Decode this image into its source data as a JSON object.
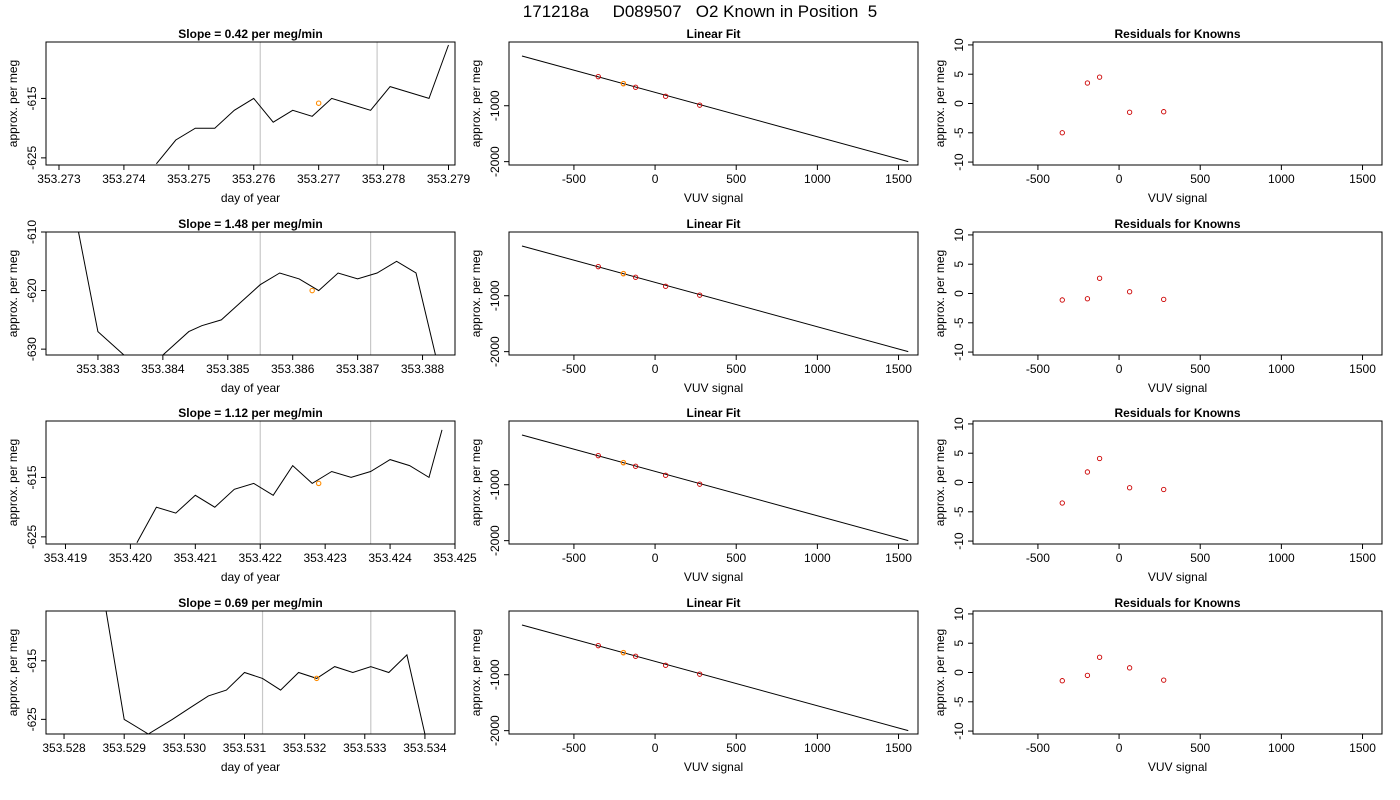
{
  "page_title": "171218a     D089507   O2 Known in Position  5",
  "colors": {
    "trace": "#000000",
    "residual_points": "#cc0000",
    "highlight_points": "#ff8c00",
    "vertical_lines": "#c8c8c8",
    "axes": "#000000"
  },
  "chart_data": [
    {
      "type": "line",
      "row": 1,
      "col": 1,
      "title": "Slope =  0.42  per meg/min",
      "xlabel": "day of year",
      "ylabel": "approx. per meg",
      "xticks": [
        "353.273",
        "353.274",
        "353.275",
        "353.276",
        "353.277",
        "353.278",
        "353.279"
      ],
      "yticks": [
        "-615",
        "-625"
      ],
      "xlim": [
        353.2728,
        353.2791
      ],
      "ylim": [
        -626.2,
        -605.5
      ],
      "vlines": [
        353.2761,
        353.2779
      ],
      "highlight": [
        [
          353.277,
          -615.8
        ]
      ],
      "series": [
        {
          "x": [
            353.2745,
            353.2748,
            353.2751,
            353.2754,
            353.2757,
            353.276,
            353.2763,
            353.2766,
            353.2769,
            353.2772,
            353.2775,
            353.2778,
            353.2781,
            353.2784,
            353.2787,
            353.279
          ],
          "y": [
            -626,
            -622,
            -620,
            -620,
            -617,
            -615,
            -619,
            -617,
            -618,
            -615,
            -616,
            -617,
            -613,
            -614,
            -615,
            -606
          ]
        }
      ]
    },
    {
      "type": "scatter",
      "row": 1,
      "col": 2,
      "title": "Linear Fit",
      "xlabel": "VUV signal",
      "ylabel": "approx. per meg",
      "xticks": [
        "-500",
        "0",
        "500",
        "1000",
        "1500"
      ],
      "yticks": [
        "-1000",
        "-2000"
      ],
      "xlim": [
        -900,
        1620
      ],
      "ylim": [
        -2060,
        140
      ],
      "fit_line": [
        [
          -820,
          -110
        ],
        [
          1560,
          -2000
        ]
      ],
      "points": [
        [
          -350,
          -480
        ],
        [
          -195,
          -605
        ],
        [
          -120,
          -670
        ],
        [
          65,
          -830
        ],
        [
          275,
          -990
        ]
      ],
      "highlight": [
        [
          -195,
          -605
        ]
      ]
    },
    {
      "type": "scatter",
      "row": 1,
      "col": 3,
      "title": "Residuals for Knowns",
      "xlabel": "VUV signal",
      "ylabel": "approx. per meg",
      "xticks": [
        "-500",
        "0",
        "500",
        "1000",
        "1500"
      ],
      "yticks": [
        "10",
        "5",
        "0",
        "-5",
        "-10"
      ],
      "xlim": [
        -900,
        1620
      ],
      "ylim": [
        -10.5,
        10.5
      ],
      "points": [
        [
          -350,
          -5.0
        ],
        [
          -195,
          3.5
        ],
        [
          -120,
          4.5
        ],
        [
          65,
          -1.5
        ],
        [
          275,
          -1.4
        ]
      ]
    },
    {
      "type": "line",
      "row": 2,
      "col": 1,
      "title": "Slope =  1.48  per meg/min",
      "xlabel": "day of year",
      "ylabel": "approx. per meg",
      "xticks": [
        "353.383",
        "353.384",
        "353.385",
        "353.386",
        "353.387",
        "353.388"
      ],
      "yticks": [
        "-610",
        "-620",
        "-630"
      ],
      "xlim": [
        353.3822,
        353.3885
      ],
      "ylim": [
        -631,
        -610
      ],
      "vlines": [
        353.3855,
        353.3872
      ],
      "highlight": [
        [
          353.3863,
          -620
        ]
      ],
      "series": [
        {
          "x": [
            353.3827,
            353.383,
            353.3834,
            353.384,
            353.3844,
            353.3846,
            353.3849,
            353.3852,
            353.3855,
            353.3858,
            353.3861,
            353.3864,
            353.3867,
            353.387,
            353.3873,
            353.3876,
            353.3879,
            353.3882
          ],
          "y": [
            -610,
            -627,
            -631,
            -631,
            -627,
            -626,
            -625,
            -622,
            -619,
            -617,
            -618,
            -620,
            -617,
            -618,
            -617,
            -615,
            -617,
            -631
          ]
        }
      ]
    },
    {
      "type": "scatter",
      "row": 2,
      "col": 2,
      "title": "Linear Fit",
      "xlabel": "VUV signal",
      "ylabel": "approx. per meg",
      "xticks": [
        "-500",
        "0",
        "500",
        "1000",
        "1500"
      ],
      "yticks": [
        "-1000",
        "-2000"
      ],
      "xlim": [
        -900,
        1620
      ],
      "ylim": [
        -2060,
        140
      ],
      "fit_line": [
        [
          -820,
          -110
        ],
        [
          1560,
          -2000
        ]
      ],
      "points": [
        [
          -350,
          -480
        ],
        [
          -195,
          -605
        ],
        [
          -120,
          -670
        ],
        [
          65,
          -830
        ],
        [
          275,
          -990
        ]
      ],
      "highlight": [
        [
          -195,
          -605
        ]
      ]
    },
    {
      "type": "scatter",
      "row": 2,
      "col": 3,
      "title": "Residuals for Knowns",
      "xlabel": "VUV signal",
      "ylabel": "approx. per meg",
      "xticks": [
        "-500",
        "0",
        "500",
        "1000",
        "1500"
      ],
      "yticks": [
        "10",
        "5",
        "0",
        "-5",
        "-10"
      ],
      "xlim": [
        -900,
        1620
      ],
      "ylim": [
        -10.5,
        10.5
      ],
      "points": [
        [
          -350,
          -1.1
        ],
        [
          -195,
          -0.9
        ],
        [
          -120,
          2.6
        ],
        [
          65,
          0.3
        ],
        [
          275,
          -1.0
        ]
      ]
    },
    {
      "type": "line",
      "row": 3,
      "col": 1,
      "title": "Slope =  1.12  per meg/min",
      "xlabel": "day of year",
      "ylabel": "approx. per meg",
      "xticks": [
        "353.419",
        "353.420",
        "353.421",
        "353.422",
        "353.423",
        "353.424",
        "353.425"
      ],
      "yticks": [
        "-615",
        "-625"
      ],
      "xlim": [
        353.4187,
        353.425
      ],
      "ylim": [
        -626.2,
        -605.5
      ],
      "vlines": [
        353.422,
        353.4237
      ],
      "highlight": [
        [
          353.4229,
          -616
        ]
      ],
      "series": [
        {
          "x": [
            353.4201,
            353.4204,
            353.4207,
            353.421,
            353.4213,
            353.4216,
            353.4219,
            353.4222,
            353.4225,
            353.4228,
            353.4231,
            353.4234,
            353.4237,
            353.424,
            353.4243,
            353.4246,
            353.4248
          ],
          "y": [
            -626,
            -620,
            -621,
            -618,
            -620,
            -617,
            -616,
            -618,
            -613,
            -616,
            -614,
            -615,
            -614,
            -612,
            -613,
            -615,
            -607
          ]
        }
      ]
    },
    {
      "type": "scatter",
      "row": 3,
      "col": 2,
      "title": "Linear Fit",
      "xlabel": "VUV signal",
      "ylabel": "approx. per meg",
      "xticks": [
        "-500",
        "0",
        "500",
        "1000",
        "1500"
      ],
      "yticks": [
        "-1000",
        "-2000"
      ],
      "xlim": [
        -900,
        1620
      ],
      "ylim": [
        -2060,
        140
      ],
      "fit_line": [
        [
          -820,
          -110
        ],
        [
          1560,
          -2000
        ]
      ],
      "points": [
        [
          -350,
          -480
        ],
        [
          -195,
          -605
        ],
        [
          -120,
          -670
        ],
        [
          65,
          -830
        ],
        [
          275,
          -990
        ]
      ],
      "highlight": [
        [
          -195,
          -605
        ]
      ]
    },
    {
      "type": "scatter",
      "row": 3,
      "col": 3,
      "title": "Residuals for Knowns",
      "xlabel": "VUV signal",
      "ylabel": "approx. per meg",
      "xticks": [
        "-500",
        "0",
        "500",
        "1000",
        "1500"
      ],
      "yticks": [
        "10",
        "5",
        "0",
        "-5",
        "-10"
      ],
      "xlim": [
        -900,
        1620
      ],
      "ylim": [
        -10.5,
        10.5
      ],
      "points": [
        [
          -350,
          -3.5
        ],
        [
          -195,
          1.8
        ],
        [
          -120,
          4.1
        ],
        [
          65,
          -0.9
        ],
        [
          275,
          -1.2
        ]
      ]
    },
    {
      "type": "line",
      "row": 4,
      "col": 1,
      "title": "Slope =  0.69  per meg/min",
      "xlabel": "day of year",
      "ylabel": "approx. per meg",
      "xticks": [
        "353.528",
        "353.529",
        "353.530",
        "353.531",
        "353.532",
        "353.533",
        "353.534"
      ],
      "yticks": [
        "-615",
        "-625"
      ],
      "xlim": [
        353.5277,
        353.5345
      ],
      "ylim": [
        -627.5,
        -606.5
      ],
      "vlines": [
        353.5313,
        353.5331
      ],
      "highlight": [
        [
          353.5322,
          -618
        ]
      ],
      "series": [
        {
          "x": [
            353.5287,
            353.529,
            353.5294,
            353.5298,
            353.5301,
            353.5304,
            353.5307,
            353.531,
            353.5313,
            353.5316,
            353.5319,
            353.5322,
            353.5325,
            353.5328,
            353.5331,
            353.5334,
            353.5337,
            353.534
          ],
          "y": [
            -606.5,
            -625,
            -627.5,
            -625,
            -623,
            -621,
            -620,
            -617,
            -618,
            -620,
            -617,
            -618,
            -616,
            -617,
            -616,
            -617,
            -614,
            -627.5
          ]
        }
      ]
    },
    {
      "type": "scatter",
      "row": 4,
      "col": 2,
      "title": "Linear Fit",
      "xlabel": "VUV signal",
      "ylabel": "approx. per meg",
      "xticks": [
        "-500",
        "0",
        "500",
        "1000",
        "1500"
      ],
      "yticks": [
        "-1000",
        "-2000"
      ],
      "xlim": [
        -900,
        1620
      ],
      "ylim": [
        -2060,
        140
      ],
      "fit_line": [
        [
          -820,
          -110
        ],
        [
          1560,
          -2000
        ]
      ],
      "points": [
        [
          -350,
          -480
        ],
        [
          -195,
          -605
        ],
        [
          -120,
          -670
        ],
        [
          65,
          -830
        ],
        [
          275,
          -990
        ]
      ],
      "highlight": [
        [
          -195,
          -605
        ]
      ]
    },
    {
      "type": "scatter",
      "row": 4,
      "col": 3,
      "title": "Residuals for Knowns",
      "xlabel": "VUV signal",
      "ylabel": "approx. per meg",
      "xticks": [
        "-500",
        "0",
        "500",
        "1000",
        "1500"
      ],
      "yticks": [
        "10",
        "5",
        "0",
        "-5",
        "-10"
      ],
      "xlim": [
        -900,
        1620
      ],
      "ylim": [
        -10.5,
        10.5
      ],
      "points": [
        [
          -350,
          -1.4
        ],
        [
          -195,
          -0.5
        ],
        [
          -120,
          2.6
        ],
        [
          65,
          0.8
        ],
        [
          275,
          -1.3
        ]
      ]
    }
  ]
}
